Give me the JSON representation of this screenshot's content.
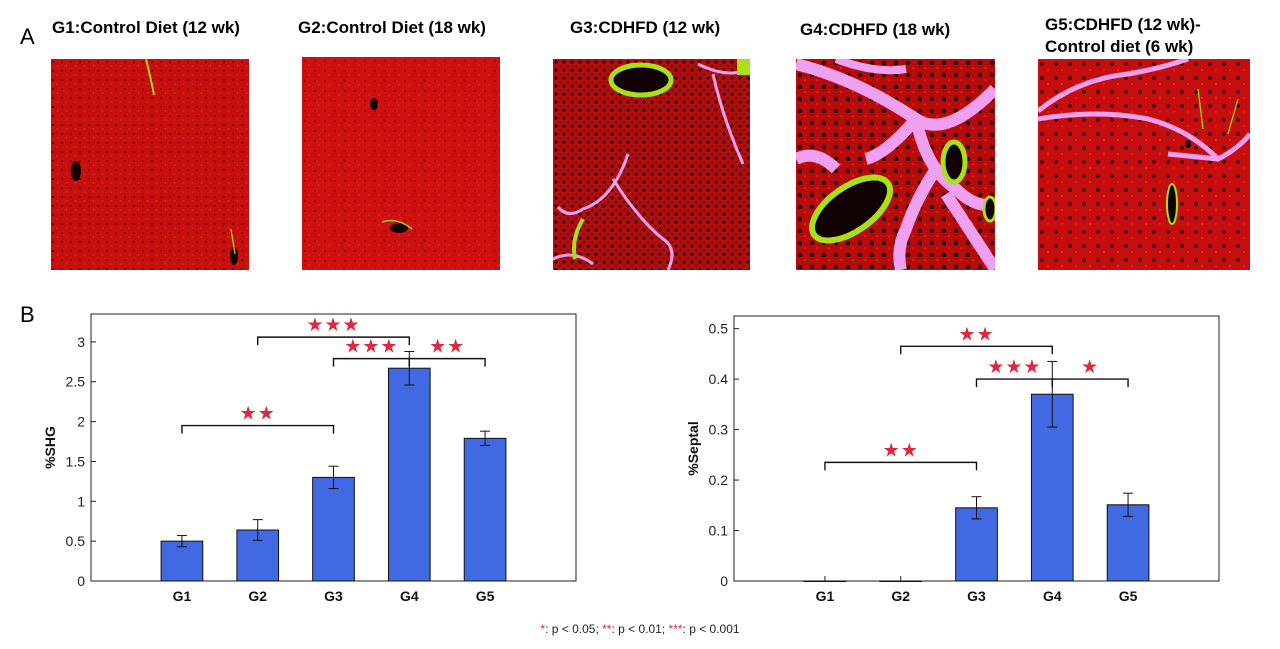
{
  "panels": {
    "a": "A",
    "b": "B"
  },
  "images": [
    {
      "title": "G1:Control Diet (12 wk)",
      "title_line2": "",
      "icon": "liver-tissue-micrograph-control-12wk"
    },
    {
      "title": "G2:Control Diet (18 wk)",
      "title_line2": "",
      "icon": "liver-tissue-micrograph-control-18wk"
    },
    {
      "title": "G3:CDHFD (12 wk)",
      "title_line2": "",
      "icon": "liver-tissue-micrograph-cdhfd-12wk"
    },
    {
      "title": "G4:CDHFD (18 wk)",
      "title_line2": "",
      "icon": "liver-tissue-micrograph-cdhfd-18wk"
    },
    {
      "title": "G5:CDHFD (12 wk)-",
      "title_line2": "Control diet (6 wk)",
      "icon": "liver-tissue-micrograph-cdhfd-recovery"
    }
  ],
  "colors": {
    "bar": "#4169e1",
    "star": "#e0283c",
    "tissue": "#c40c0c",
    "collagen": "#f0a0f0",
    "vessel_rim": "#a8e01a"
  },
  "chart_data": [
    {
      "type": "bar",
      "categories": [
        "G1",
        "G2",
        "G3",
        "G4",
        "G5"
      ],
      "values": [
        0.5,
        0.64,
        1.3,
        2.67,
        1.79
      ],
      "errors": [
        0.07,
        0.13,
        0.14,
        0.21,
        0.09
      ],
      "ylabel": "%SHG",
      "ylim": [
        0,
        3.35
      ],
      "yticks": [
        0,
        0.5,
        1,
        1.5,
        2,
        2.5,
        3
      ],
      "xlim": [
        -0.2,
        6.2
      ],
      "grid": false,
      "significance": [
        {
          "from": "G1",
          "to": "G3",
          "stars": "★★",
          "y": 1.95
        },
        {
          "from": "G2",
          "to": "G4",
          "stars": "★★★",
          "y": 3.06
        },
        {
          "from": "G3",
          "to": "G4",
          "stars": "★★★",
          "y": 2.79
        },
        {
          "from": "G4",
          "to": "G5",
          "stars": "★★",
          "y": 2.79
        }
      ]
    },
    {
      "type": "bar",
      "categories": [
        "G1",
        "G2",
        "G3",
        "G4",
        "G5"
      ],
      "values": [
        0,
        0,
        0.145,
        0.37,
        0.151
      ],
      "errors": [
        0,
        0,
        0.022,
        0.065,
        0.023
      ],
      "ylabel": "%Septal",
      "ylim": [
        0,
        0.525
      ],
      "yticks": [
        0,
        0.1,
        0.2,
        0.3,
        0.4,
        0.5
      ],
      "xlim": [
        -0.2,
        6.2
      ],
      "grid": false,
      "significance": [
        {
          "from": "G1",
          "to": "G3",
          "stars": "★★",
          "y": 0.235
        },
        {
          "from": "G2",
          "to": "G4",
          "stars": "★★",
          "y": 0.465
        },
        {
          "from": "G3",
          "to": "G4",
          "stars": "★★★",
          "y": 0.4
        },
        {
          "from": "G4",
          "to": "G5",
          "stars": "★",
          "y": 0.4
        }
      ]
    }
  ],
  "footnote": {
    "s1": "*",
    "t1": ":  p < 0.05; ",
    "s2": "**",
    "t2": ":  p < 0.01; ",
    "s3": "***",
    "t3": ":  p < 0.001"
  }
}
